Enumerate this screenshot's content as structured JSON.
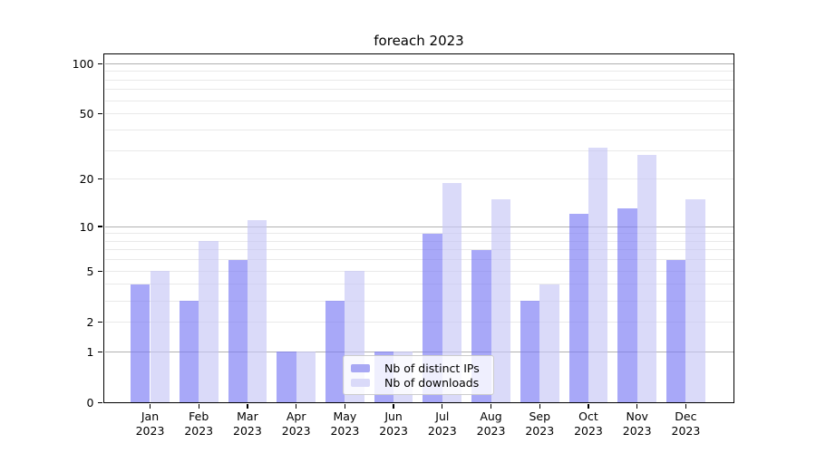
{
  "chart_data": {
    "type": "bar",
    "title": "foreach 2023",
    "x_tick_months": [
      "Jan",
      "Feb",
      "Mar",
      "Apr",
      "May",
      "Jun",
      "Jul",
      "Aug",
      "Sep",
      "Oct",
      "Nov",
      "Dec"
    ],
    "x_tick_year": "2023",
    "series": [
      {
        "name": "Nb of distinct IPs",
        "values": [
          4,
          3,
          6,
          1,
          3,
          1,
          9,
          7,
          3,
          12,
          13,
          6
        ],
        "color": "#a8a8f4",
        "bar_rgba": "rgba(121,121,244,0.65)"
      },
      {
        "name": "Nb of downloads",
        "values": [
          5,
          8,
          11,
          1,
          5,
          1,
          19,
          15,
          4,
          31,
          28,
          15
        ],
        "color": "#dadaf9",
        "bar_rgba": "rgba(198,198,246,0.65)"
      }
    ],
    "yscale": "log10(1+x)",
    "ylim": [
      0,
      115
    ],
    "y_tick_labels": [
      0,
      1,
      2,
      5,
      10,
      20,
      50,
      100
    ],
    "y_major_gridlines": [
      1,
      10,
      100
    ],
    "y_minor_gridlines": [
      2,
      3,
      4,
      5,
      6,
      7,
      8,
      9,
      20,
      30,
      40,
      50,
      60,
      70,
      80,
      90
    ],
    "grid": true,
    "legend_position": "lower center"
  },
  "colors": {
    "background": "#ffffff",
    "major_grid": "#b1b1b1",
    "minor_grid": "#e9e9e9",
    "axis": "#000000",
    "text": "#000000",
    "legend_border": "#cccccc"
  }
}
